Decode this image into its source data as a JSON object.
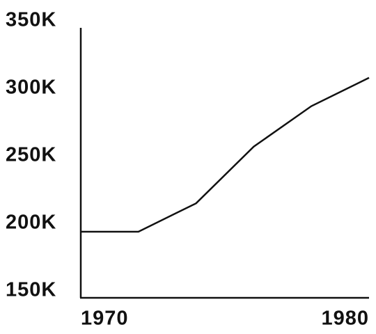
{
  "chart_data": {
    "type": "line",
    "x": [
      1970,
      1972,
      1974,
      1976,
      1978,
      1980
    ],
    "values": [
      199000,
      199000,
      220000,
      262000,
      292000,
      313000
    ],
    "color": "#111111",
    "xlim": [
      1970,
      1980
    ],
    "xticks": [
      1970,
      1980
    ],
    "ylim": [
      150000,
      350000
    ],
    "yticks": [
      {
        "value": 150000,
        "label": "150K"
      },
      {
        "value": 200000,
        "label": "200K"
      },
      {
        "value": 250000,
        "label": "250K"
      },
      {
        "value": 300000,
        "label": "300K"
      },
      {
        "value": 350000,
        "label": "350K"
      }
    ],
    "grid": false
  }
}
